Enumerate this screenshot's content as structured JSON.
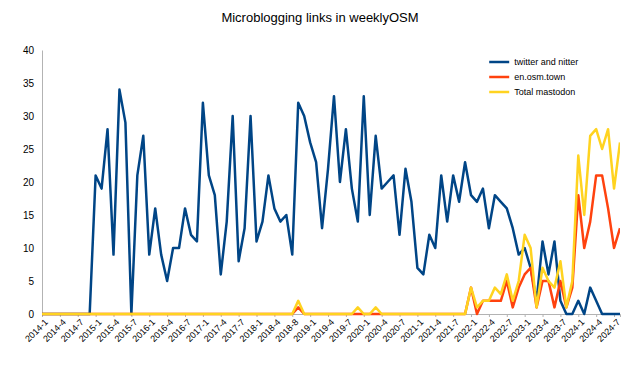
{
  "chart_data": {
    "type": "line",
    "title": "Microblogging links in weeklyOSM",
    "categories": [
      "2014-1",
      null,
      null,
      "2014-4",
      null,
      null,
      "2014-7",
      null,
      null,
      "2015-1",
      null,
      null,
      "2015-4",
      null,
      null,
      "2015-7",
      null,
      null,
      "2016-1",
      null,
      null,
      "2016-4",
      null,
      null,
      "2016-7",
      null,
      null,
      "2017-1",
      null,
      null,
      "2017-4",
      null,
      null,
      "2017-7",
      null,
      null,
      "2018-1",
      null,
      null,
      "2018-4",
      null,
      null,
      "2018-8",
      null,
      null,
      "2019-1",
      null,
      null,
      "2019-4",
      null,
      null,
      "2019-7",
      null,
      null,
      "2020-1",
      null,
      null,
      "2020-4",
      null,
      null,
      "2020-7",
      null,
      null,
      "2021-1",
      null,
      null,
      "2021-4",
      null,
      null,
      "2021-7",
      null,
      null,
      "2022-1",
      null,
      null,
      "2022-4",
      null,
      null,
      "2022-7",
      null,
      null,
      "2023-1",
      null,
      null,
      "2023-4",
      null,
      null,
      "2023-7",
      null,
      null,
      "2024-1",
      null,
      null,
      "2024-4",
      null,
      null,
      "2024-7",
      null
    ],
    "series": [
      {
        "name": "twitter and nitter",
        "color": "#004586",
        "values": [
          0,
          0,
          0,
          0,
          0,
          0,
          0,
          0,
          0,
          21,
          19,
          28,
          9,
          34,
          29,
          0,
          21,
          27,
          9,
          16,
          9,
          5,
          10,
          10,
          16,
          12,
          11,
          32,
          21,
          18,
          6,
          14,
          30,
          8,
          13,
          30,
          11,
          14,
          21,
          16,
          14,
          15,
          9,
          32,
          30,
          26,
          23,
          13,
          22,
          33,
          20,
          28,
          19,
          14,
          33,
          15,
          27,
          19,
          20,
          21,
          12,
          22,
          17,
          7,
          6,
          12,
          10,
          21,
          14,
          21,
          17,
          23,
          18,
          17,
          19,
          13,
          18,
          17,
          16,
          13,
          9,
          10,
          7,
          2,
          11,
          6,
          11,
          2,
          0,
          0,
          2,
          0,
          4,
          2,
          0,
          0,
          0,
          0
        ]
      },
      {
        "name": "en.osm.town",
        "color": "#ff420e",
        "values": [
          0,
          0,
          0,
          0,
          0,
          0,
          0,
          0,
          0,
          0,
          0,
          0,
          0,
          0,
          0,
          0,
          0,
          0,
          0,
          0,
          0,
          0,
          0,
          0,
          0,
          0,
          0,
          0,
          0,
          0,
          0,
          0,
          0,
          0,
          0,
          0,
          0,
          0,
          0,
          0,
          0,
          0,
          0,
          1,
          0,
          0,
          0,
          0,
          0,
          0,
          0,
          0,
          0,
          0,
          0,
          0,
          0,
          0,
          0,
          0,
          0,
          0,
          0,
          0,
          0,
          0,
          0,
          0,
          0,
          0,
          0,
          0,
          4,
          0,
          2,
          2,
          2,
          2,
          5,
          1,
          4,
          6,
          7,
          1,
          5,
          5,
          1,
          5,
          1,
          4,
          18,
          10,
          14,
          21,
          21,
          16,
          10,
          13
        ]
      },
      {
        "name": "Total mastodon",
        "color": "#ffd320",
        "values": [
          0,
          0,
          0,
          0,
          0,
          0,
          0,
          0,
          0,
          0,
          0,
          0,
          0,
          0,
          0,
          0,
          0,
          0,
          0,
          0,
          0,
          0,
          0,
          0,
          0,
          0,
          0,
          0,
          0,
          0,
          0,
          0,
          0,
          0,
          0,
          0,
          0,
          0,
          0,
          0,
          0,
          0,
          0,
          2,
          0,
          0,
          0,
          0,
          0,
          0,
          0,
          0,
          0,
          1,
          0,
          0,
          1,
          0,
          0,
          0,
          0,
          0,
          0,
          0,
          0,
          0,
          0,
          0,
          0,
          0,
          0,
          0,
          4,
          1,
          2,
          2,
          4,
          3,
          6,
          2,
          5,
          12,
          10,
          1,
          7,
          5,
          4,
          8,
          1,
          5,
          24,
          15,
          27,
          28,
          25,
          28,
          19,
          26
        ]
      }
    ],
    "ylim": [
      0,
      40
    ],
    "yticks": [
      0,
      5,
      10,
      15,
      20,
      25,
      30,
      35,
      40
    ],
    "legend": "top-right"
  }
}
